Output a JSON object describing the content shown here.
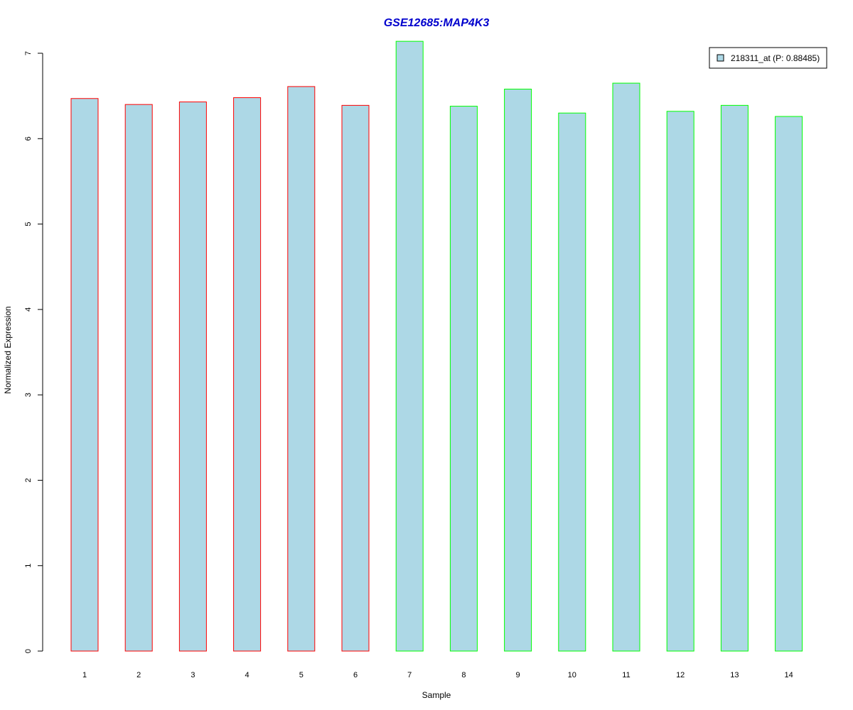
{
  "chart_data": {
    "type": "bar",
    "title": "GSE12685:MAP4K3",
    "xlabel": "Sample",
    "ylabel": "Normalized Expression",
    "ylim": [
      0,
      7
    ],
    "yticks": [
      0,
      1,
      2,
      3,
      4,
      5,
      6,
      7
    ],
    "categories": [
      "1",
      "2",
      "3",
      "4",
      "5",
      "6",
      "7",
      "8",
      "9",
      "10",
      "11",
      "12",
      "13",
      "14"
    ],
    "values": [
      6.47,
      6.4,
      6.43,
      6.48,
      6.61,
      6.39,
      7.14,
      6.38,
      6.58,
      6.3,
      6.65,
      6.32,
      6.39,
      6.26
    ],
    "groups": [
      "red",
      "red",
      "red",
      "red",
      "red",
      "red",
      "green",
      "green",
      "green",
      "green",
      "green",
      "green",
      "green",
      "green"
    ],
    "series": [
      {
        "name": "218311_at (P: 0.88485)",
        "values": [
          6.47,
          6.4,
          6.43,
          6.48,
          6.61,
          6.39,
          7.14,
          6.38,
          6.58,
          6.3,
          6.65,
          6.32,
          6.39,
          6.26
        ]
      }
    ],
    "legend_position": "top-right",
    "grid": false,
    "colors": {
      "bar_fill": "#add8e6",
      "group_red": "#ff0000",
      "group_green": "#00ff00",
      "title": "#0000cd"
    }
  }
}
